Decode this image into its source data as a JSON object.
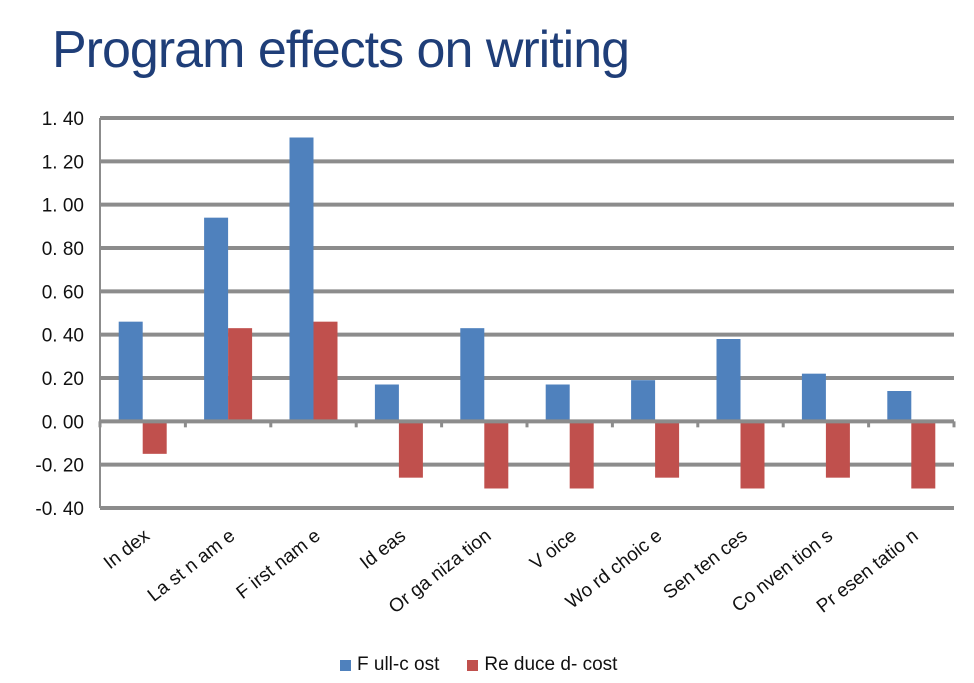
{
  "chart_data": {
    "type": "bar",
    "title": "Program effects on writing",
    "categories": [
      "In dex",
      "La st n am e",
      "F irst nam e",
      "Id eas",
      "Or ga niza tion",
      "V oice",
      "Wo rd choic e",
      "Sen ten ces",
      "Co nven tion s",
      "Pr esen tatio n"
    ],
    "series": [
      {
        "name": "F ull-c ost",
        "color": "#4f81bd",
        "values": [
          0.46,
          0.94,
          1.31,
          0.17,
          0.43,
          0.17,
          0.19,
          0.38,
          0.22,
          0.14
        ]
      },
      {
        "name": "Re duce d- cost",
        "color": "#c0504d",
        "values": [
          -0.15,
          0.43,
          0.46,
          -0.26,
          -0.31,
          -0.31,
          -0.26,
          -0.31,
          -0.26,
          -0.31
        ]
      }
    ],
    "ylim": [
      -0.4,
      1.4
    ],
    "yticks": [
      1.4,
      1.2,
      1.0,
      0.8,
      0.6,
      0.4,
      0.2,
      0.0,
      -0.2,
      -0.4
    ],
    "ytick_labels": [
      "1. 40",
      "1. 20",
      "1. 00",
      "0. 80",
      "0. 60",
      "0. 40",
      "0. 20",
      "0. 00",
      "-0. 20",
      "-0. 40"
    ],
    "grid": true,
    "legend_position": "bottom",
    "xlabel": "",
    "ylabel": ""
  }
}
